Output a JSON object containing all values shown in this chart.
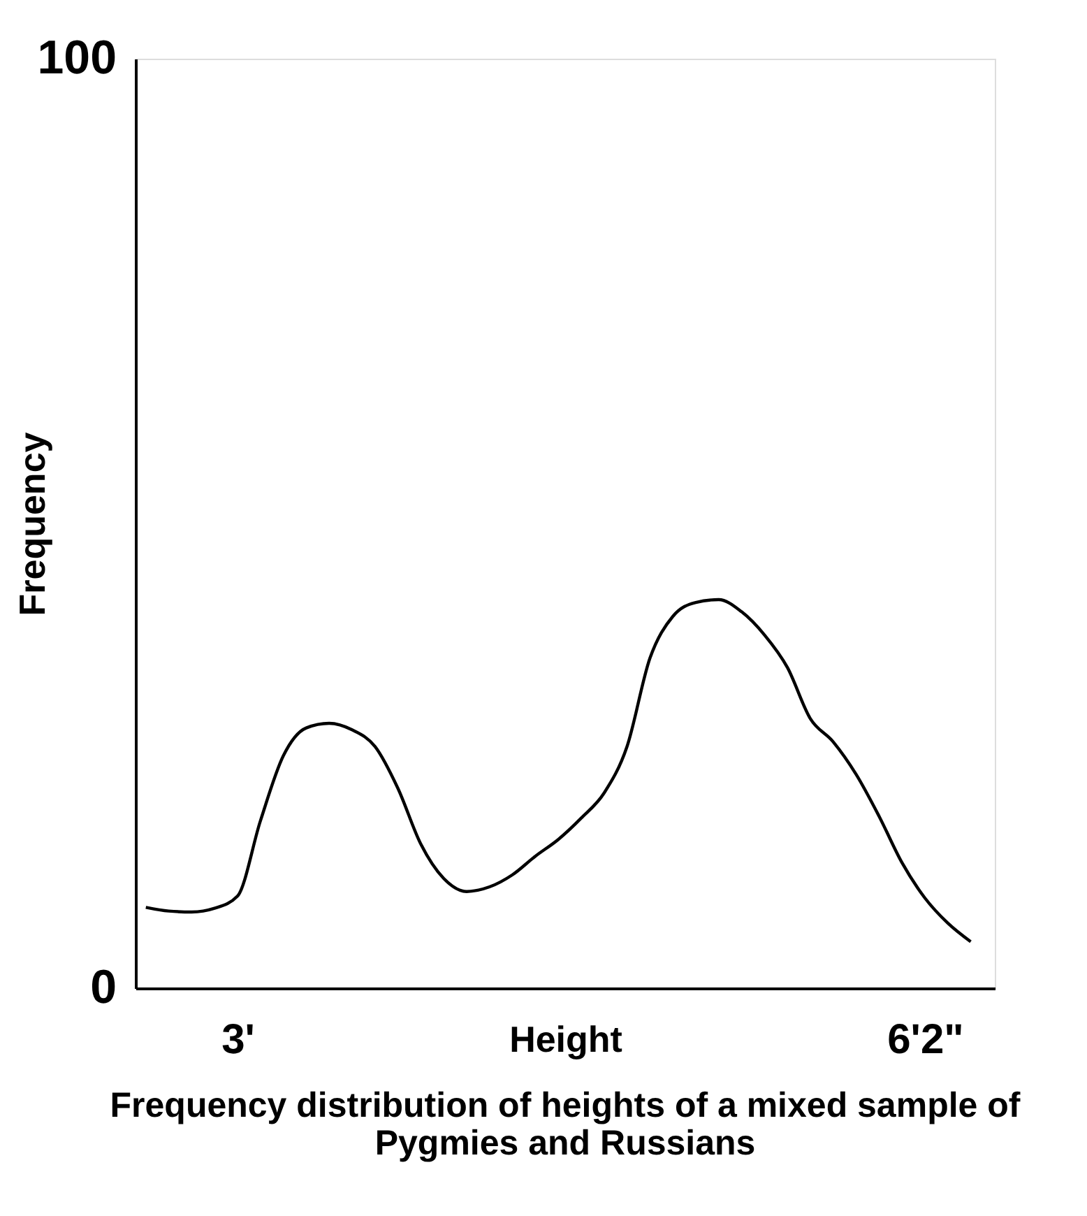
{
  "chart_data": {
    "type": "line",
    "title": "Frequency distribution of heights of a mixed sample of Pygmies and Russians",
    "xlabel": "Height",
    "ylabel": "Frequency",
    "categories": [
      null,
      null,
      null,
      null,
      "3'",
      null,
      null,
      null,
      null,
      null,
      null,
      null,
      null,
      null,
      null,
      null,
      null,
      null,
      null,
      null,
      null,
      null,
      null,
      null,
      null,
      null,
      null,
      null,
      null,
      null,
      null,
      null,
      null,
      null,
      "6'2\"",
      null,
      null
    ],
    "series": [
      {
        "color": "#000000",
        "values": [
          8.7,
          8.3,
          8.2,
          8.6,
          9.9,
          18.0,
          25.0,
          28.0,
          28.5,
          27.8,
          26.0,
          21.5,
          15.5,
          11.8,
          10.4,
          10.9,
          12.2,
          14.2,
          16.0,
          18.3,
          21.0,
          26.0,
          35.5,
          40.0,
          41.5,
          41.8,
          40.5,
          38.0,
          34.5,
          29.0,
          26.5,
          23.0,
          18.5,
          13.5,
          9.7,
          7.0,
          5.0
        ]
      }
    ],
    "ylim": [
      0,
      100
    ],
    "yticks": [
      0,
      100
    ],
    "grid": false,
    "marker": "none",
    "line_style": "solid"
  }
}
